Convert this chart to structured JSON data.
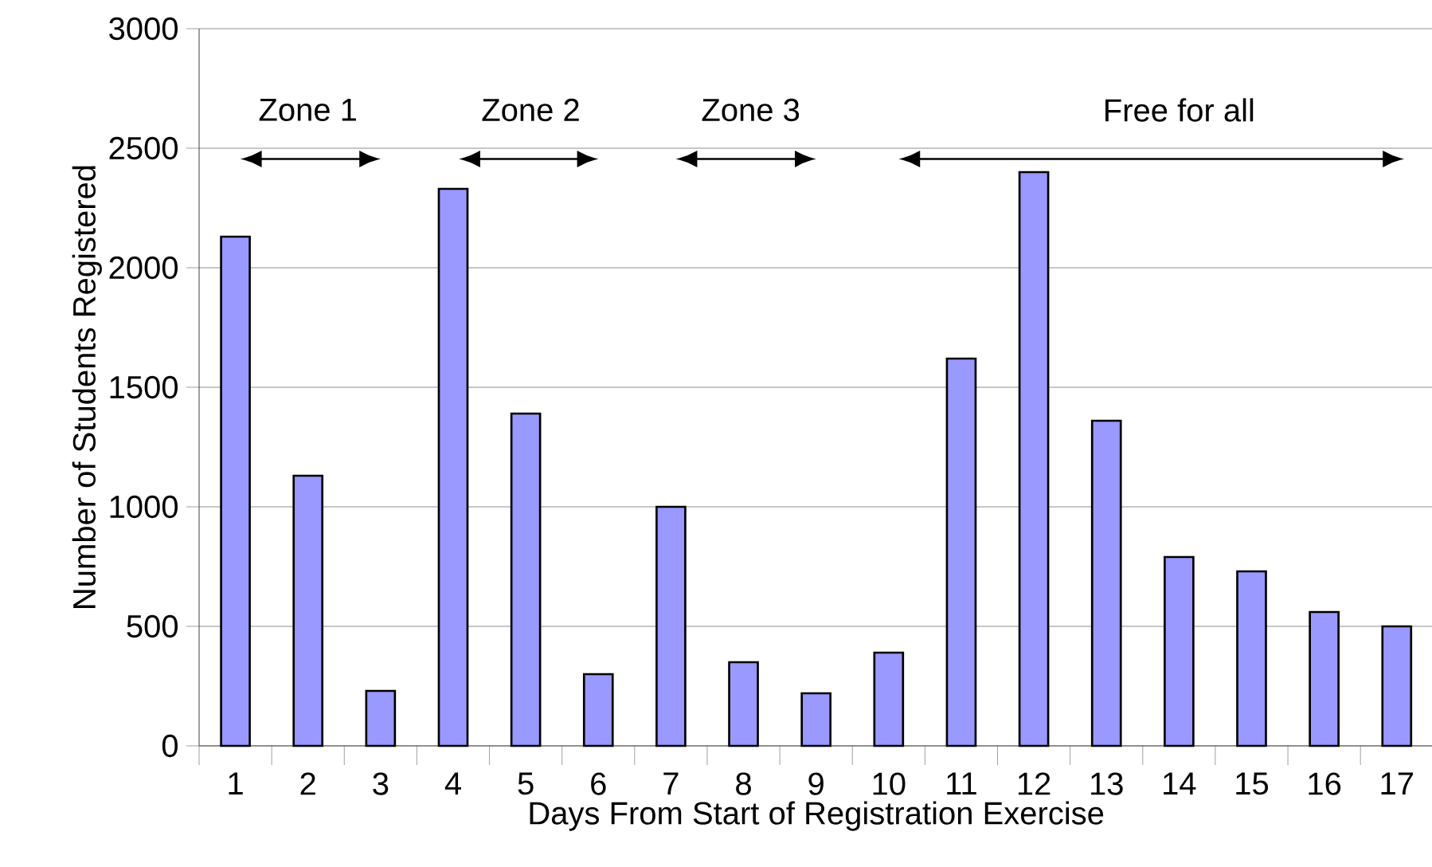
{
  "chart_data": {
    "type": "bar",
    "xlabel": "Days From Start of Registration Exercise",
    "ylabel": "Number of Students Registered",
    "categories": [
      "1",
      "2",
      "3",
      "4",
      "5",
      "6",
      "7",
      "8",
      "9",
      "10",
      "11",
      "12",
      "13",
      "14",
      "15",
      "16",
      "17"
    ],
    "values": [
      2130,
      1130,
      230,
      2330,
      1390,
      300,
      1000,
      350,
      220,
      390,
      1620,
      2400,
      1360,
      790,
      730,
      560,
      500
    ],
    "color": "#9999ff",
    "ylim": [
      0,
      3000
    ],
    "yticks": [
      0,
      500,
      1000,
      1500,
      2000,
      2500,
      3000
    ],
    "grid": "y",
    "annotations": [
      "Zone 1",
      "Zone 2",
      "Zone 3",
      "Free for all"
    ]
  }
}
